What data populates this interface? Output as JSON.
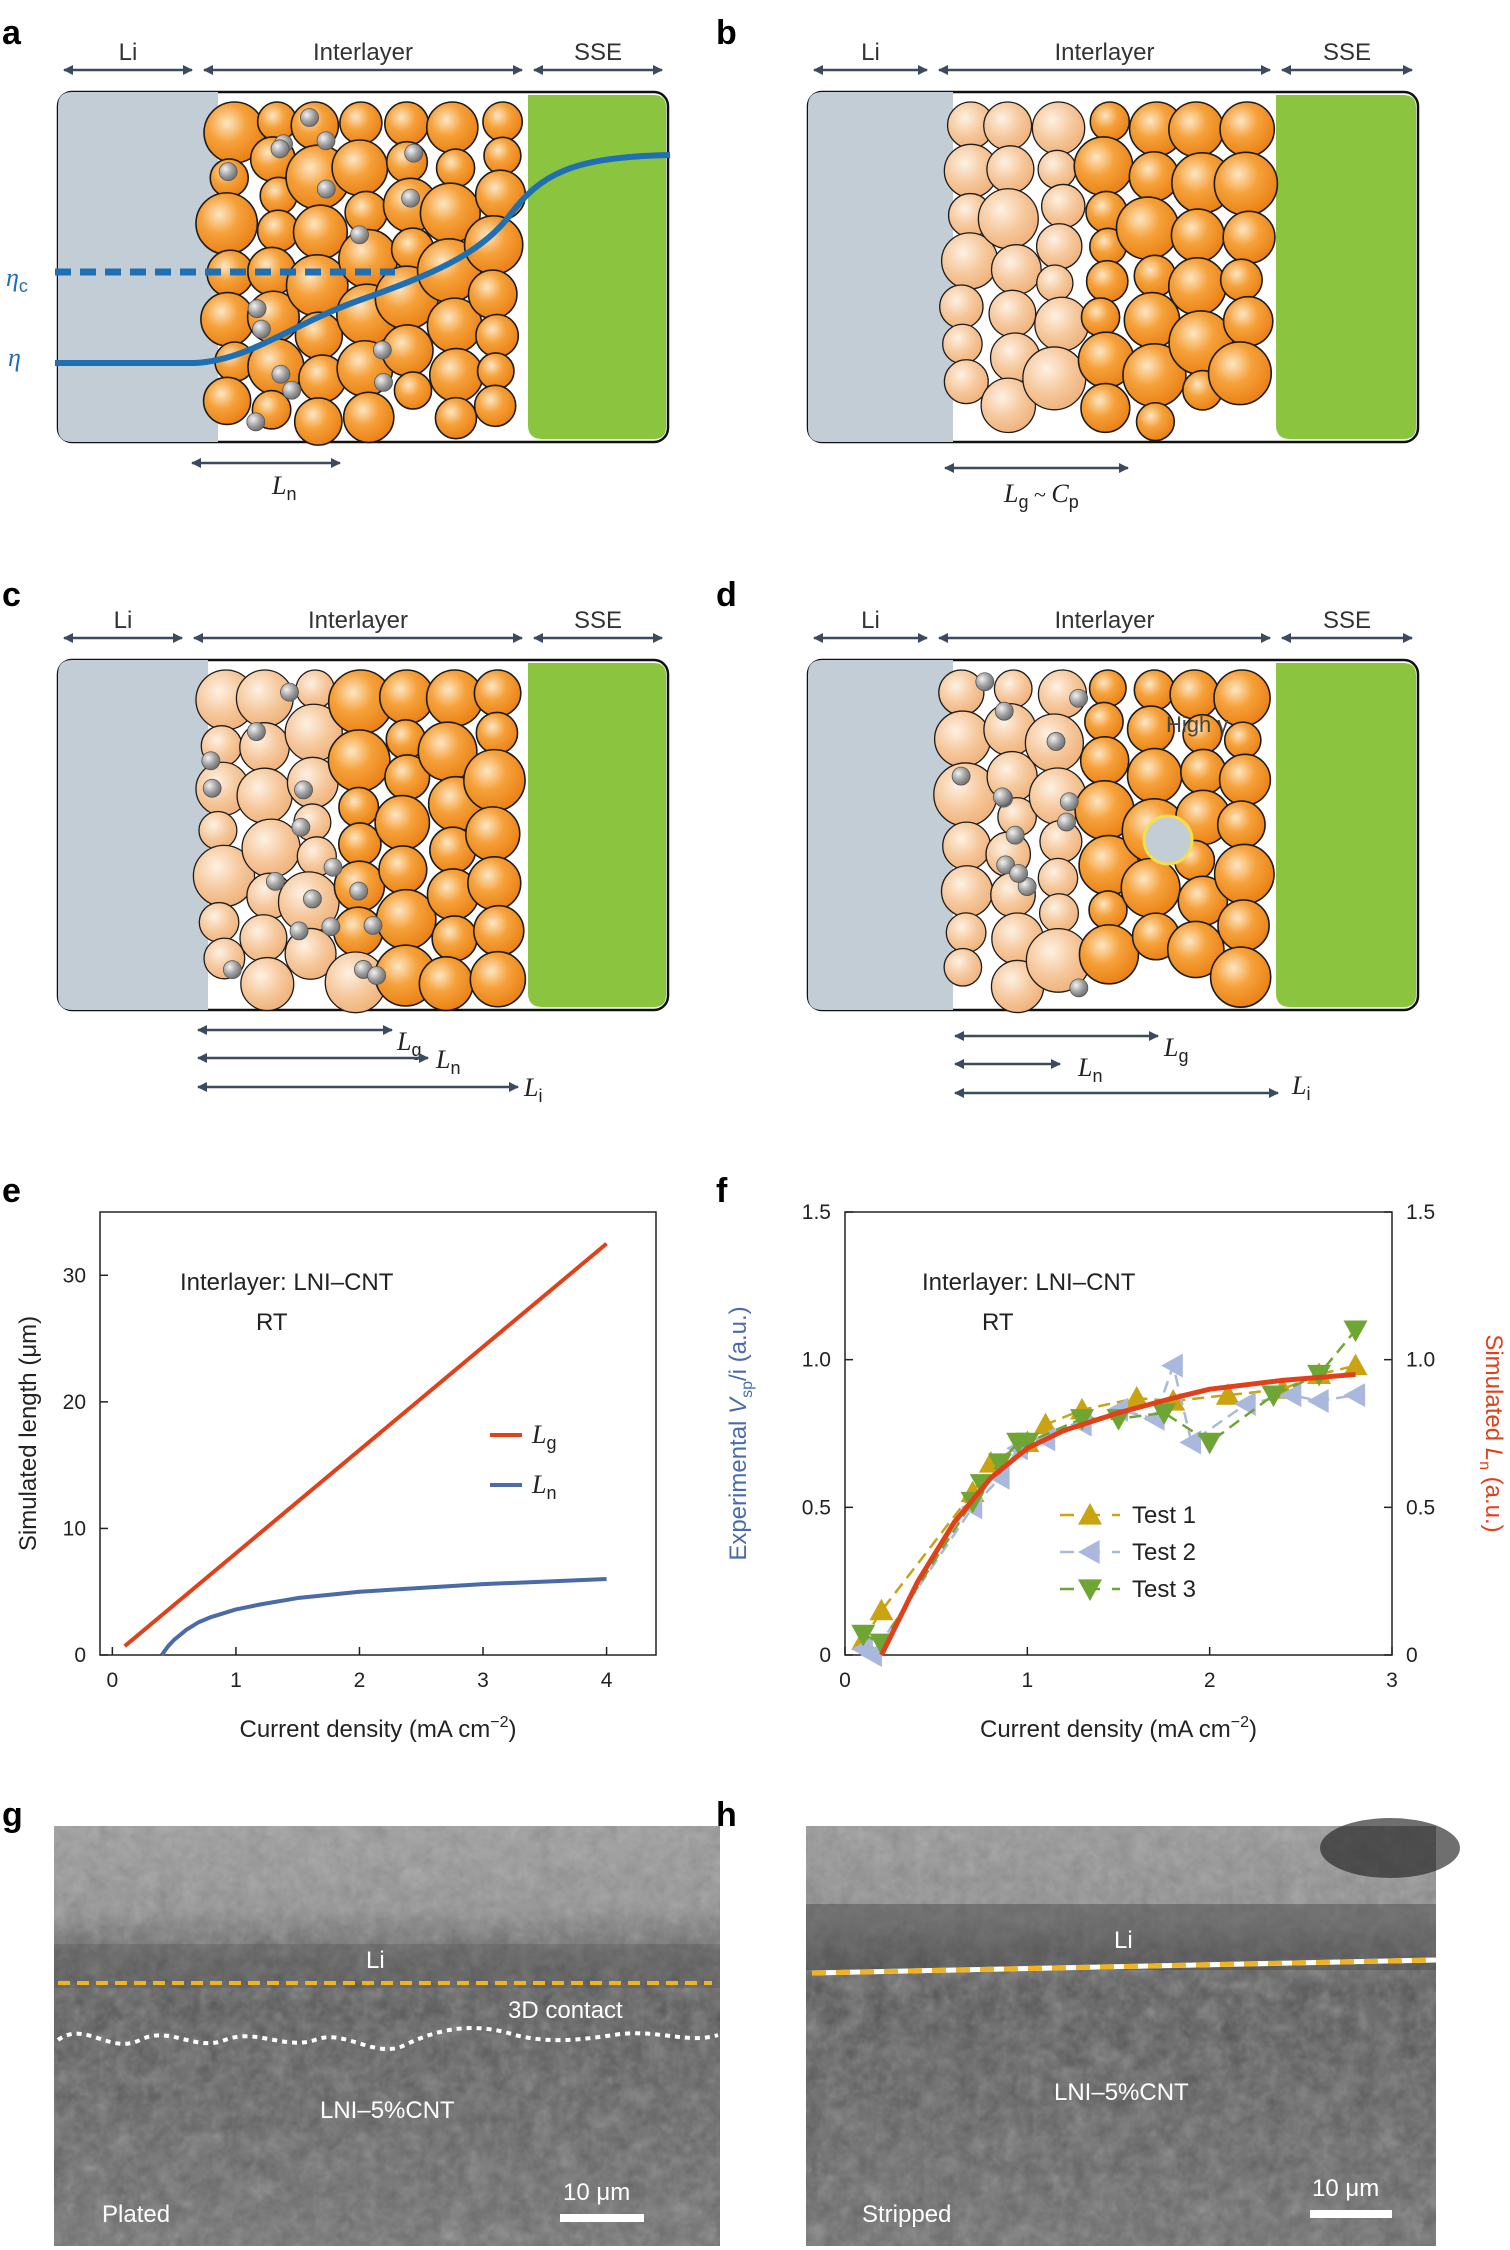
{
  "panel_labels": [
    "a",
    "b",
    "c",
    "d",
    "e",
    "f",
    "g",
    "h"
  ],
  "schematic": {
    "headers": {
      "li": "Li",
      "interlayer": "Interlayer",
      "sse": "SSE"
    },
    "a": {
      "eta_c": "η",
      "eta_c_sub": "c",
      "eta": "η",
      "ln": "L",
      "ln_sub": "n"
    },
    "b": {
      "lg": "L",
      "lg_sub": "g",
      "tilde": " ~ ",
      "cp": "C",
      "cp_sub": "p"
    },
    "c": {
      "lg": "L",
      "lg_sub": "g",
      "ln": "L",
      "ln_sub": "n",
      "li": "L",
      "li_sub": "i"
    },
    "d": {
      "high_gamma": "High γ",
      "lg": "L",
      "lg_sub": "g",
      "ln": "L",
      "ln_sub": "n",
      "li": "L",
      "li_sub": "i"
    }
  },
  "colors": {
    "li_gray": "#c3cdd6",
    "sse_green": "#8bc540",
    "particle_orange": "#f39a2a",
    "lithiated_orange": "#f6c79a",
    "eta_blue": "#1f6fb5",
    "lg_red": "#e0411b",
    "ln_blue": "#4a6aa8",
    "test1": "#c9a312",
    "test2": "#a9b8dc",
    "test3": "#6fa534",
    "dash_yellow": "#f0b323"
  },
  "chart_data": [
    {
      "panel": "e",
      "type": "line",
      "annotation": [
        "Interlayer: LNI–CNT",
        "RT"
      ],
      "xlabel": "Current density (mA cm",
      "xlabel_sup": "−2",
      "xlabel_end": ")",
      "ylabel": "Simulated length (μm)",
      "xlim": [
        -0.1,
        4.4
      ],
      "ylim": [
        0,
        35
      ],
      "xticks": [
        0,
        1,
        2,
        3,
        4
      ],
      "yticks": [
        0,
        10,
        20,
        30
      ],
      "series": [
        {
          "name": "L",
          "sub": "g",
          "color": "#e0411b",
          "x": [
            0.1,
            4.0
          ],
          "y": [
            0.7,
            32.5
          ]
        },
        {
          "name": "L",
          "sub": "n",
          "color": "#4a6aa8",
          "x": [
            0.4,
            0.45,
            0.5,
            0.6,
            0.7,
            0.8,
            1.0,
            1.2,
            1.5,
            2.0,
            2.5,
            3.0,
            3.5,
            4.0
          ],
          "y": [
            0.0,
            0.68,
            1.2,
            2.0,
            2.6,
            3.0,
            3.6,
            4.0,
            4.5,
            5.0,
            5.3,
            5.6,
            5.8,
            6.0
          ]
        }
      ]
    },
    {
      "panel": "f",
      "type": "scatter",
      "annotation": [
        "Interlayer: LNI–CNT",
        "RT"
      ],
      "xlabel": "Current density (mA cm",
      "xlabel_sup": "−2",
      "xlabel_end": ")",
      "ylabel_left": "Experimental ",
      "ylabel_left_v": "V",
      "ylabel_left_sub": "sp",
      "ylabel_left_end": "/i (a.u.)",
      "ylabel_right": "Simulated ",
      "ylabel_right_l": "L",
      "ylabel_right_sub": "n",
      "ylabel_right_end": " (a.u.)",
      "xlim": [
        0,
        3
      ],
      "ylim": [
        0,
        1.5
      ],
      "xticks": [
        0,
        1,
        2,
        3
      ],
      "yticks": [
        "0",
        "0.5",
        "1.0",
        "1.5"
      ],
      "ytick_values": [
        0,
        0.5,
        1.0,
        1.5
      ],
      "simulated": {
        "color": "#e0411b",
        "x": [
          0.2,
          0.4,
          0.6,
          0.8,
          1.0,
          1.2,
          1.5,
          1.8,
          2.0,
          2.4,
          2.8
        ],
        "y": [
          0.0,
          0.25,
          0.45,
          0.6,
          0.7,
          0.76,
          0.82,
          0.87,
          0.9,
          0.93,
          0.95
        ]
      },
      "series": [
        {
          "name": "Test 1",
          "marker": "triangle-up",
          "color": "#c9a312",
          "x": [
            0.1,
            0.2,
            0.7,
            0.8,
            1.0,
            1.1,
            1.3,
            1.6,
            1.8,
            2.1,
            2.4,
            2.6,
            2.8
          ],
          "y": [
            0.05,
            0.15,
            0.55,
            0.65,
            0.72,
            0.78,
            0.83,
            0.87,
            0.86,
            0.88,
            0.9,
            0.95,
            0.98
          ]
        },
        {
          "name": "Test 2",
          "marker": "triangle-left",
          "color": "#a9b8dc",
          "x": [
            0.1,
            0.15,
            0.7,
            0.85,
            0.95,
            1.1,
            1.3,
            1.5,
            1.7,
            1.8,
            1.9,
            2.2,
            2.45,
            2.6,
            2.8
          ],
          "y": [
            0.02,
            0.0,
            0.5,
            0.6,
            0.7,
            0.73,
            0.78,
            0.83,
            0.8,
            0.98,
            0.72,
            0.85,
            0.88,
            0.86,
            0.88
          ]
        },
        {
          "name": "Test 3",
          "marker": "triangle-down",
          "color": "#6fa534",
          "x": [
            0.1,
            0.2,
            0.7,
            0.75,
            0.85,
            0.95,
            1.0,
            1.3,
            1.5,
            1.75,
            2.0,
            2.35,
            2.6,
            2.8
          ],
          "y": [
            0.07,
            0.04,
            0.52,
            0.58,
            0.65,
            0.72,
            0.72,
            0.8,
            0.8,
            0.82,
            0.72,
            0.88,
            0.95,
            1.1
          ]
        }
      ]
    }
  ],
  "micrographs": {
    "g": {
      "li": "Li",
      "contact": "3D contact",
      "bulk": "LNI–5%CNT",
      "state": "Plated",
      "scale": "10 μm"
    },
    "h": {
      "li": "Li",
      "bulk": "LNI–5%CNT",
      "state": "Stripped",
      "scale": "10 μm"
    }
  }
}
